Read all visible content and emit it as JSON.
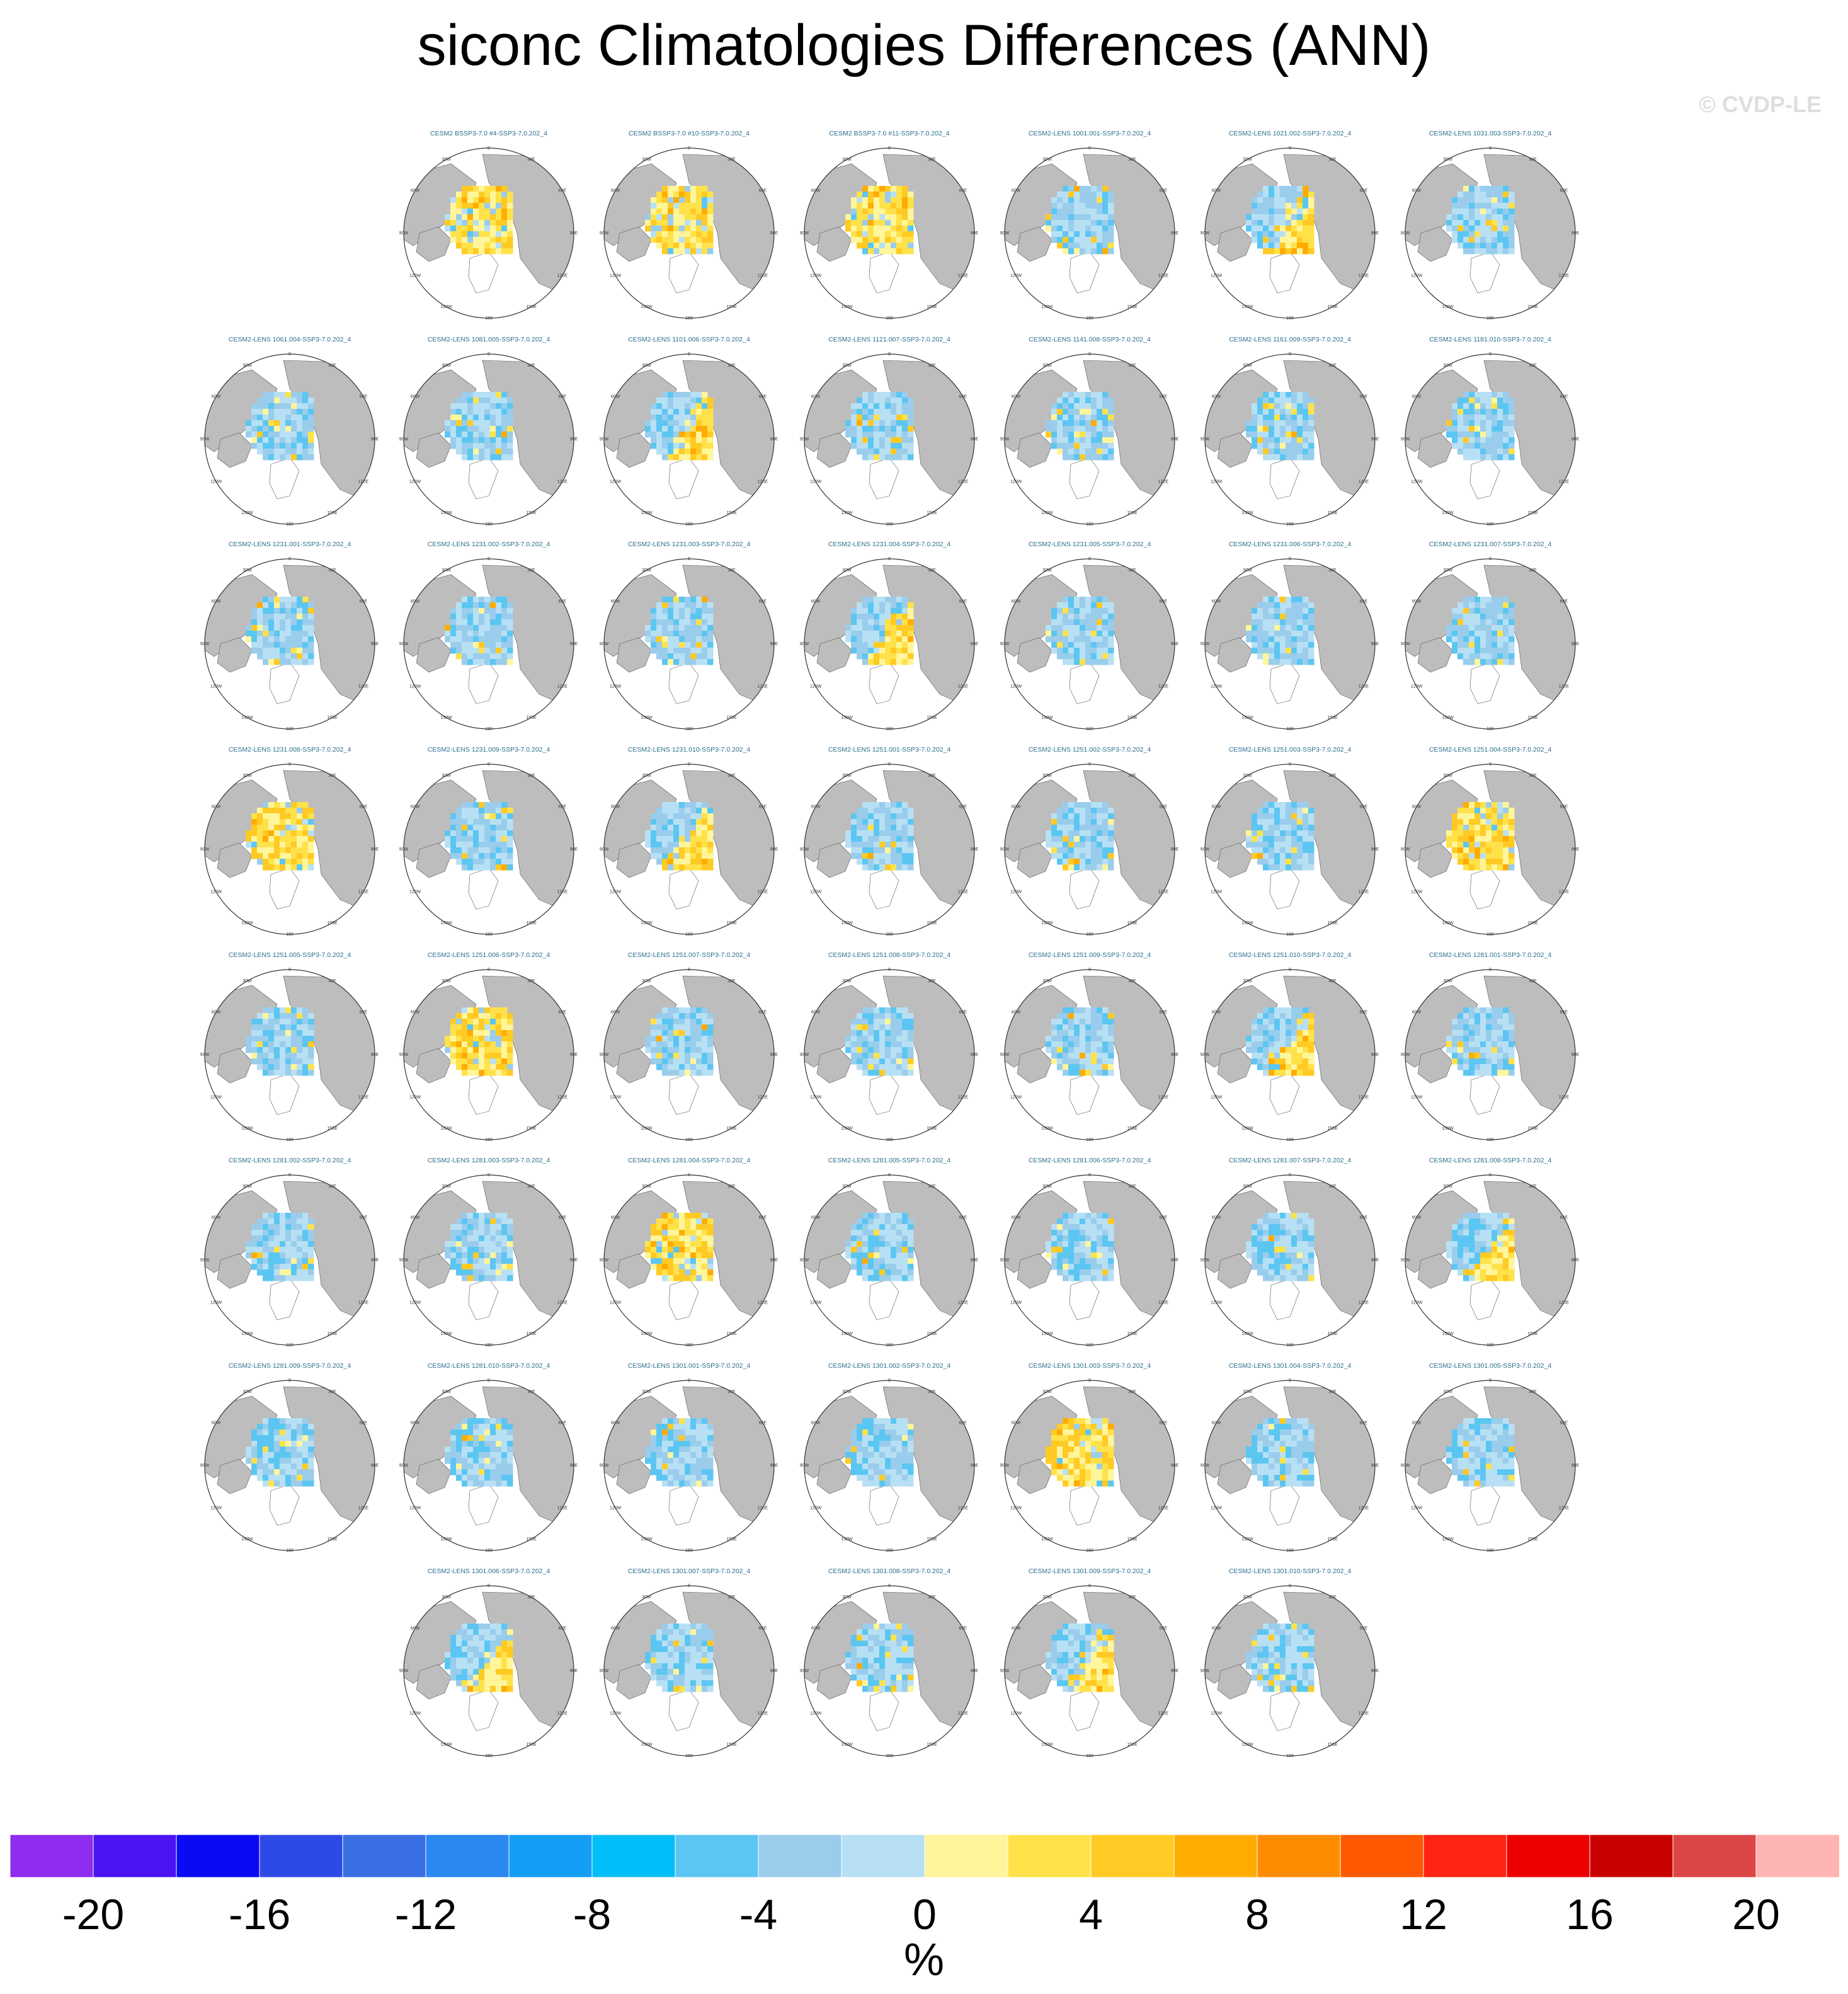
{
  "title": "siconc Climatologies Differences (ANN)",
  "copyright": "© CVDP-LE",
  "chart_data": {
    "type": "heatmap",
    "projection": "north-polar-stereographic",
    "variable": "siconc",
    "units": "%",
    "panel_lon_labels": [
      "180",
      "150E",
      "120E",
      "90E",
      "60E",
      "30E",
      "0",
      "30W",
      "60W",
      "90W",
      "120W",
      "150W"
    ],
    "colorbar": {
      "colors": [
        "#8e2cf0",
        "#4a14f4",
        "#0a0af5",
        "#2e4ae6",
        "#3a6fe4",
        "#2a88f0",
        "#159ef8",
        "#00bef8",
        "#5cc6f2",
        "#9acdec",
        "#b8e0f4",
        "#fff59a",
        "#ffe24a",
        "#ffca24",
        "#ffac00",
        "#ff8c00",
        "#ff5800",
        "#ff2414",
        "#ee0000",
        "#c80000",
        "#dc4646",
        "#ffb4b4"
      ],
      "tick_labels": [
        "-20",
        "-16",
        "-12",
        "-8",
        "-4",
        "0",
        "4",
        "8",
        "12",
        "16",
        "20"
      ],
      "units_label": "%"
    },
    "panels": [
      {
        "title": "CESM2 BSSP3-7.0 #4-SSP3-7.0.202_4",
        "sign": "positive"
      },
      {
        "title": "CESM2 BSSP3-7.0 #10-SSP3-7.0.202_4",
        "sign": "positive"
      },
      {
        "title": "CESM2 BSSP3-7.0 #11-SSP3-7.0.202_4",
        "sign": "positive"
      },
      {
        "title": "CESM2-LENS 1001.001-SSP3-7.0.202_4",
        "sign": "negative"
      },
      {
        "title": "CESM2-LENS 1021.002-SSP3-7.0.202_4",
        "sign": "mixed"
      },
      {
        "title": "CESM2-LENS 1031.003-SSP3-7.0.202_4",
        "sign": "negative"
      },
      {
        "title": "CESM2-LENS 1061.004-SSP3-7.0.202_4",
        "sign": "negative"
      },
      {
        "title": "CESM2-LENS 1081.005-SSP3-7.0.202_4",
        "sign": "negative"
      },
      {
        "title": "CESM2-LENS 1101.006-SSP3-7.0.202_4",
        "sign": "mixed"
      },
      {
        "title": "CESM2-LENS 1121.007-SSP3-7.0.202_4",
        "sign": "negative"
      },
      {
        "title": "CESM2-LENS 1141.008-SSP3-7.0.202_4",
        "sign": "negative"
      },
      {
        "title": "CESM2-LENS 1161.009-SSP3-7.0.202_4",
        "sign": "negative"
      },
      {
        "title": "CESM2-LENS 1181.010-SSP3-7.0.202_4",
        "sign": "negative"
      },
      {
        "title": "CESM2-LENS 1231.001-SSP3-7.0.202_4",
        "sign": "negative"
      },
      {
        "title": "CESM2-LENS 1231.002-SSP3-7.0.202_4",
        "sign": "negative"
      },
      {
        "title": "CESM2-LENS 1231.003-SSP3-7.0.202_4",
        "sign": "negative"
      },
      {
        "title": "CESM2-LENS 1231.004-SSP3-7.0.202_4",
        "sign": "mixed"
      },
      {
        "title": "CESM2-LENS 1231.005-SSP3-7.0.202_4",
        "sign": "negative"
      },
      {
        "title": "CESM2-LENS 1231.006-SSP3-7.0.202_4",
        "sign": "negative"
      },
      {
        "title": "CESM2-LENS 1231.007-SSP3-7.0.202_4",
        "sign": "negative"
      },
      {
        "title": "CESM2-LENS 1231.008-SSP3-7.0.202_4",
        "sign": "positive"
      },
      {
        "title": "CESM2-LENS 1231.009-SSP3-7.0.202_4",
        "sign": "negative"
      },
      {
        "title": "CESM2-LENS 1231.010-SSP3-7.0.202_4",
        "sign": "mixed"
      },
      {
        "title": "CESM2-LENS 1251.001-SSP3-7.0.202_4",
        "sign": "negative"
      },
      {
        "title": "CESM2-LENS 1251.002-SSP3-7.0.202_4",
        "sign": "negative"
      },
      {
        "title": "CESM2-LENS 1251.003-SSP3-7.0.202_4",
        "sign": "negative"
      },
      {
        "title": "CESM2-LENS 1251.004-SSP3-7.0.202_4",
        "sign": "positive"
      },
      {
        "title": "CESM2-LENS 1251.005-SSP3-7.0.202_4",
        "sign": "negative"
      },
      {
        "title": "CESM2-LENS 1251.006-SSP3-7.0.202_4",
        "sign": "positive"
      },
      {
        "title": "CESM2-LENS 1251.007-SSP3-7.0.202_4",
        "sign": "negative"
      },
      {
        "title": "CESM2-LENS 1251.008-SSP3-7.0.202_4",
        "sign": "negative"
      },
      {
        "title": "CESM2-LENS 1251.009-SSP3-7.0.202_4",
        "sign": "negative"
      },
      {
        "title": "CESM2-LENS 1251.010-SSP3-7.0.202_4",
        "sign": "mixed"
      },
      {
        "title": "CESM2-LENS 1281.001-SSP3-7.0.202_4",
        "sign": "negative"
      },
      {
        "title": "CESM2-LENS 1281.002-SSP3-7.0.202_4",
        "sign": "negative"
      },
      {
        "title": "CESM2-LENS 1281.003-SSP3-7.0.202_4",
        "sign": "negative"
      },
      {
        "title": "CESM2-LENS 1281.004-SSP3-7.0.202_4",
        "sign": "positive"
      },
      {
        "title": "CESM2-LENS 1281.005-SSP3-7.0.202_4",
        "sign": "negative"
      },
      {
        "title": "CESM2-LENS 1281.006-SSP3-7.0.202_4",
        "sign": "negative"
      },
      {
        "title": "CESM2-LENS 1281.007-SSP3-7.0.202_4",
        "sign": "negative"
      },
      {
        "title": "CESM2-LENS 1281.008-SSP3-7.0.202_4",
        "sign": "mixed"
      },
      {
        "title": "CESM2-LENS 1281.009-SSP3-7.0.202_4",
        "sign": "negative"
      },
      {
        "title": "CESM2-LENS 1281.010-SSP3-7.0.202_4",
        "sign": "negative"
      },
      {
        "title": "CESM2-LENS 1301.001-SSP3-7.0.202_4",
        "sign": "negative"
      },
      {
        "title": "CESM2-LENS 1301.002-SSP3-7.0.202_4",
        "sign": "negative"
      },
      {
        "title": "CESM2-LENS 1301.003-SSP3-7.0.202_4",
        "sign": "positive"
      },
      {
        "title": "CESM2-LENS 1301.004-SSP3-7.0.202_4",
        "sign": "negative"
      },
      {
        "title": "CESM2-LENS 1301.005-SSP3-7.0.202_4",
        "sign": "negative"
      },
      {
        "title": "CESM2-LENS 1301.006-SSP3-7.0.202_4",
        "sign": "mixed"
      },
      {
        "title": "CESM2-LENS 1301.007-SSP3-7.0.202_4",
        "sign": "negative"
      },
      {
        "title": "CESM2-LENS 1301.008-SSP3-7.0.202_4",
        "sign": "negative"
      },
      {
        "title": "CESM2-LENS 1301.009-SSP3-7.0.202_4",
        "sign": "mixed"
      },
      {
        "title": "CESM2-LENS 1301.010-SSP3-7.0.202_4",
        "sign": "negative"
      }
    ]
  }
}
